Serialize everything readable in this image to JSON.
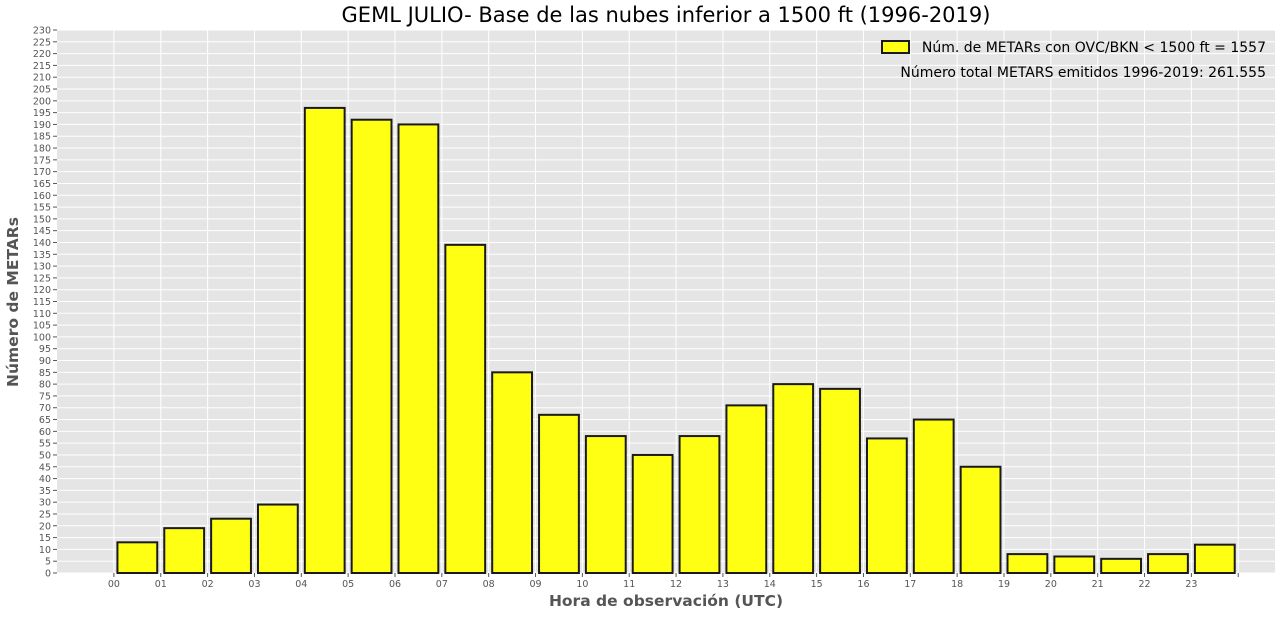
{
  "chart_data": {
    "type": "bar",
    "title": "GEML JULIO- Base de las nubes inferior a 1500 ft (1996-2019)",
    "xlabel": "Hora de observación (UTC)",
    "ylabel": "Número de METARs",
    "categories": [
      "00",
      "01",
      "02",
      "03",
      "04",
      "05",
      "06",
      "07",
      "08",
      "09",
      "10",
      "11",
      "12",
      "13",
      "14",
      "15",
      "16",
      "17",
      "18",
      "19",
      "20",
      "21",
      "22",
      "23"
    ],
    "x_tick_labels": [
      "00",
      "01",
      "02",
      "03",
      "04",
      "05",
      "06",
      "07",
      "08",
      "09",
      "10",
      "11",
      "12",
      "13",
      "14",
      "15",
      "16",
      "17",
      "18",
      "19",
      "20",
      "21",
      "22",
      "23",
      ""
    ],
    "series": [
      {
        "name": "Núm. de METARs con OVC/BKN < 1500 ft = 1557",
        "values": [
          13,
          19,
          23,
          29,
          197,
          192,
          190,
          139,
          85,
          67,
          58,
          50,
          58,
          71,
          80,
          78,
          57,
          65,
          45,
          8,
          7,
          6,
          8,
          12
        ]
      }
    ],
    "ylim": [
      0,
      230
    ],
    "ytick_step": 5,
    "grid": true,
    "legend_position": "top-right",
    "annotation": "Número total METARS emitidos 1996-2019: 261.555",
    "colors": {
      "bar_fill": "#ffff14",
      "bar_edge": "#1a1a1a",
      "plot_background": "#e5e5e5",
      "grid": "#ffffff",
      "tick_text": "#555555",
      "axis_label": "#555555",
      "title": "#000000"
    }
  }
}
